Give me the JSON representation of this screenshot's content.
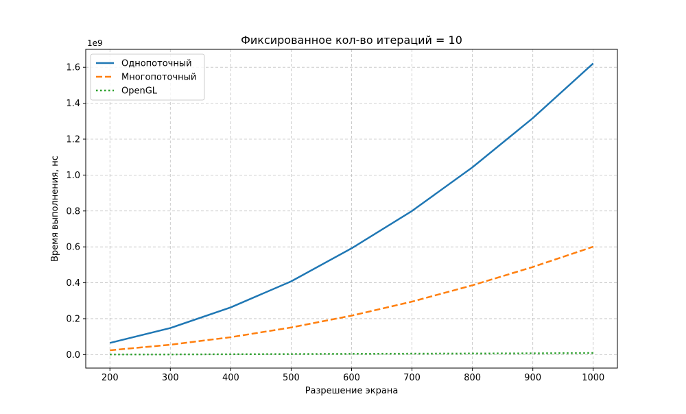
{
  "chart_data": {
    "type": "line",
    "title": "Фиксированное кол-во итераций = 10",
    "xlabel": "Разрешение экрана",
    "ylabel": "Время выполнения, нс",
    "y_offset_label": "1e9",
    "y_scale": 1000000000,
    "x": [
      200,
      300,
      400,
      500,
      600,
      700,
      800,
      900,
      1000
    ],
    "xlim": [
      160,
      1040
    ],
    "ylim": [
      -0.075,
      1.7
    ],
    "xticks": [
      200,
      300,
      400,
      500,
      600,
      700,
      800,
      900,
      1000
    ],
    "yticks": [
      0.0,
      0.2,
      0.4,
      0.6,
      0.8,
      1.0,
      1.2,
      1.4,
      1.6
    ],
    "xtick_labels": [
      "200",
      "300",
      "400",
      "500",
      "600",
      "700",
      "800",
      "900",
      "1000"
    ],
    "ytick_labels": [
      "0.0",
      "0.2",
      "0.4",
      "0.6",
      "0.8",
      "1.0",
      "1.2",
      "1.4",
      "1.6"
    ],
    "grid": true,
    "legend_position": "top-left",
    "series": [
      {
        "name": "Однопоточный",
        "color": "#1f77b4",
        "style": "solid",
        "values": [
          0.065,
          0.148,
          0.263,
          0.408,
          0.592,
          0.8,
          1.043,
          1.317,
          1.622
        ]
      },
      {
        "name": "Многопоточный",
        "color": "#ff7f0e",
        "style": "dashed",
        "values": [
          0.024,
          0.055,
          0.097,
          0.151,
          0.217,
          0.295,
          0.386,
          0.488,
          0.601
        ]
      },
      {
        "name": "OpenGL",
        "color": "#2ca02c",
        "style": "dotted",
        "values": [
          0.001,
          0.001,
          0.002,
          0.003,
          0.004,
          0.005,
          0.006,
          0.007,
          0.009
        ]
      }
    ]
  }
}
